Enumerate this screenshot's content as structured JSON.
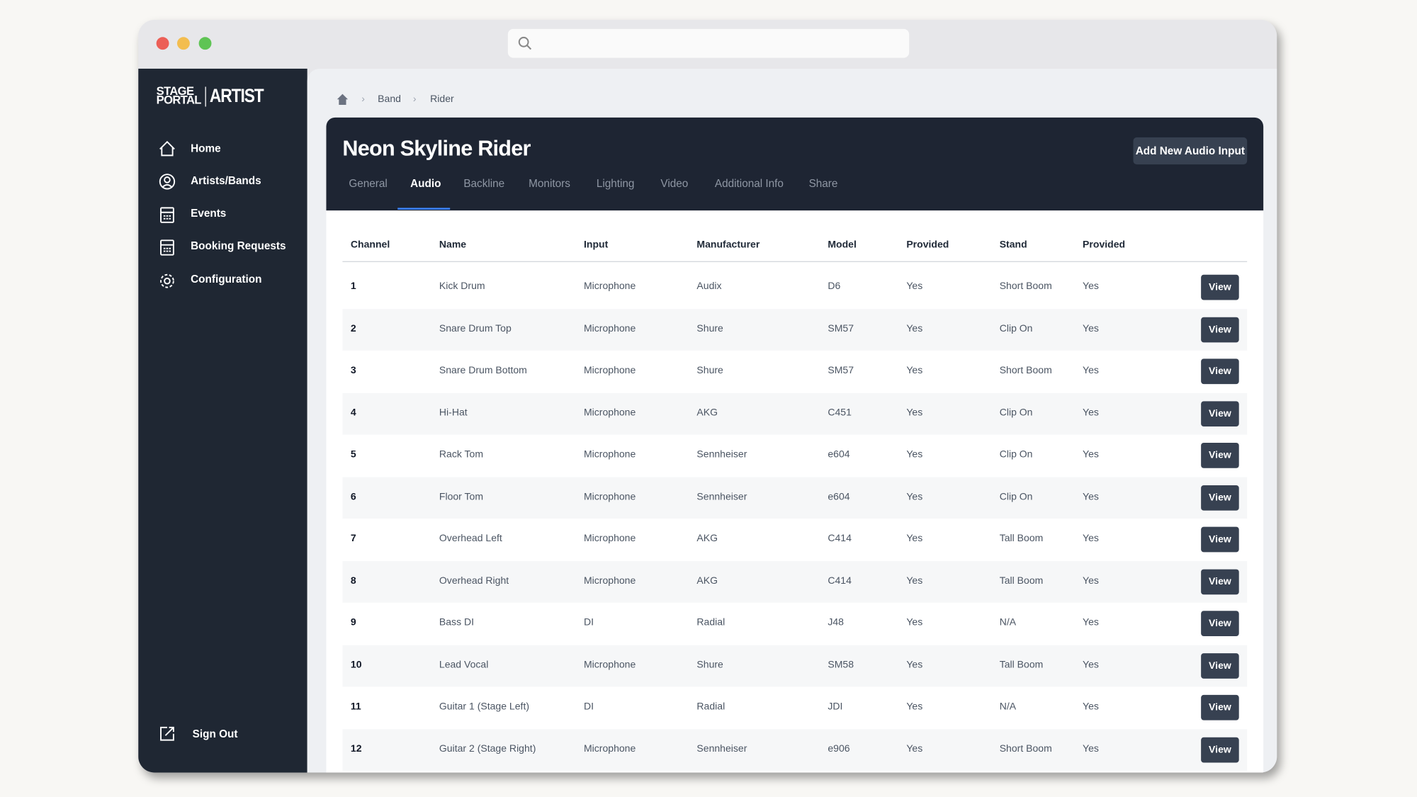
{
  "sidebar": {
    "logo": {
      "top": "STAGE",
      "bottom": "PORTAL",
      "brand": "ARTIST"
    },
    "nav": [
      "Home",
      "Artists/Bands",
      "Events",
      "Booking Requests",
      "Configuration"
    ],
    "sign_out": "Sign Out"
  },
  "breadcrumb": [
    "Band",
    "Rider"
  ],
  "header": {
    "title": "Neon Skyline Rider",
    "button": "Add New Audio Input",
    "tabs": [
      "General",
      "Audio",
      "Backline",
      "Monitors",
      "Lighting",
      "Video",
      "Additional Info",
      "Share"
    ],
    "active_tab": 1
  },
  "table": {
    "columns": [
      "Channel",
      "Name",
      "Input",
      "Manufacturer",
      "Model",
      "Provided",
      "Stand",
      "Provided"
    ],
    "action": "View",
    "rows": [
      [
        "1",
        "Kick Drum",
        "Microphone",
        "Audix",
        "D6",
        "Yes",
        "Short Boom",
        "Yes"
      ],
      [
        "2",
        "Snare Drum Top",
        "Microphone",
        "Shure",
        "SM57",
        "Yes",
        "Clip On",
        "Yes"
      ],
      [
        "3",
        "Snare Drum Bottom",
        "Microphone",
        "Shure",
        "SM57",
        "Yes",
        "Short Boom",
        "Yes"
      ],
      [
        "4",
        "Hi-Hat",
        "Microphone",
        "AKG",
        "C451",
        "Yes",
        "Clip On",
        "Yes"
      ],
      [
        "5",
        "Rack Tom",
        "Microphone",
        "Sennheiser",
        "e604",
        "Yes",
        "Clip On",
        "Yes"
      ],
      [
        "6",
        "Floor Tom",
        "Microphone",
        "Sennheiser",
        "e604",
        "Yes",
        "Clip On",
        "Yes"
      ],
      [
        "7",
        "Overhead Left",
        "Microphone",
        "AKG",
        "C414",
        "Yes",
        "Tall Boom",
        "Yes"
      ],
      [
        "8",
        "Overhead Right",
        "Microphone",
        "AKG",
        "C414",
        "Yes",
        "Tall Boom",
        "Yes"
      ],
      [
        "9",
        "Bass DI",
        "DI",
        "Radial",
        "J48",
        "Yes",
        "N/A",
        "Yes"
      ],
      [
        "10",
        "Lead Vocal",
        "Microphone",
        "Shure",
        "SM58",
        "Yes",
        "Tall Boom",
        "Yes"
      ],
      [
        "11",
        "Guitar 1 (Stage Left)",
        "DI",
        "Radial",
        "JDI",
        "Yes",
        "N/A",
        "Yes"
      ],
      [
        "12",
        "Guitar 2 (Stage Right)",
        "Microphone",
        "Sennheiser",
        "e906",
        "Yes",
        "Short Boom",
        "Yes"
      ]
    ]
  }
}
